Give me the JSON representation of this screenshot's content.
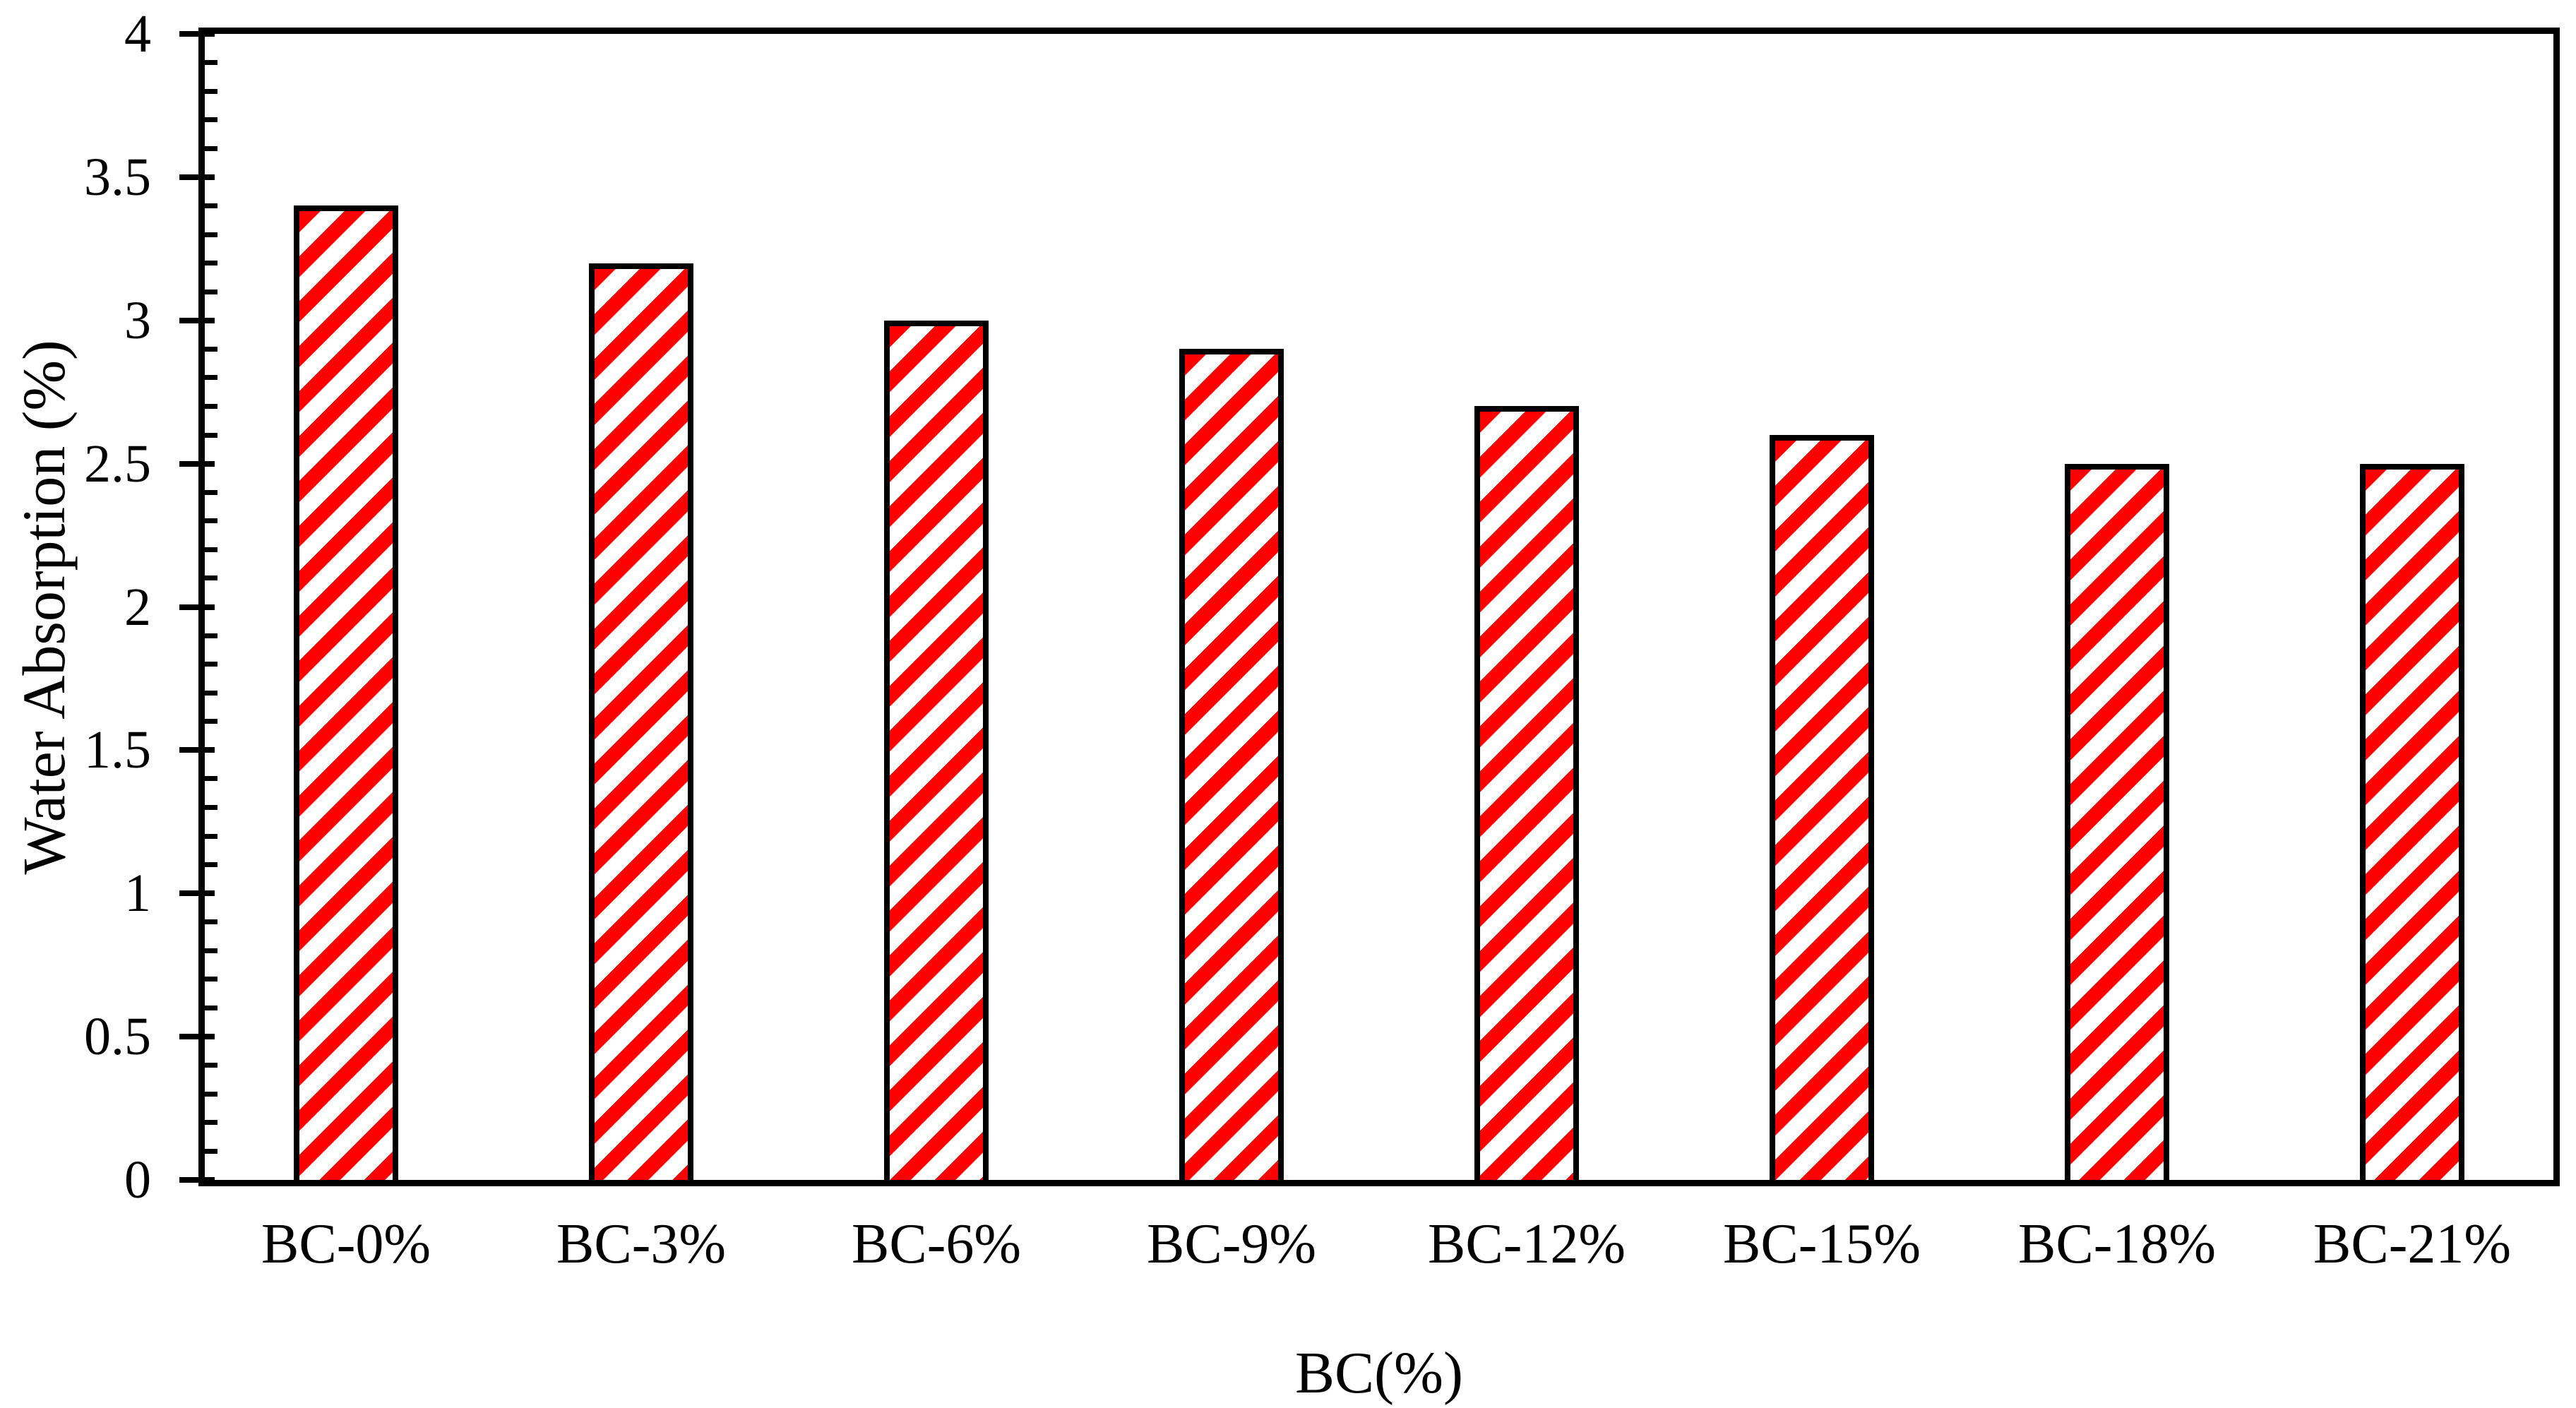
{
  "chart_data": {
    "type": "bar",
    "title": "",
    "categories": [
      "BC-0%",
      "BC-3%",
      "BC-6%",
      "BC-9%",
      "BC-12%",
      "BC-15%",
      "BC-18%",
      "BC-21%"
    ],
    "values": [
      3.4,
      3.2,
      3.0,
      2.9,
      2.7,
      2.6,
      2.5,
      2.5
    ],
    "xlabel": "BC(%)",
    "ylabel": "Water Absorption (%)",
    "ylim": [
      0,
      4
    ],
    "y_major_step": 0.5,
    "y_minor_step": 0.1,
    "y_tick_labels": [
      "0",
      "0.5",
      "1",
      "1.5",
      "2",
      "2.5",
      "3",
      "3.5",
      "4"
    ],
    "grid": "off",
    "legend": "none",
    "bar_fill_color": "#ff0000",
    "bar_hatch": "diagonal-stripes-up-right",
    "bar_border_color": "#000000",
    "axis_color": "#000000",
    "background_color": "#ffffff"
  }
}
